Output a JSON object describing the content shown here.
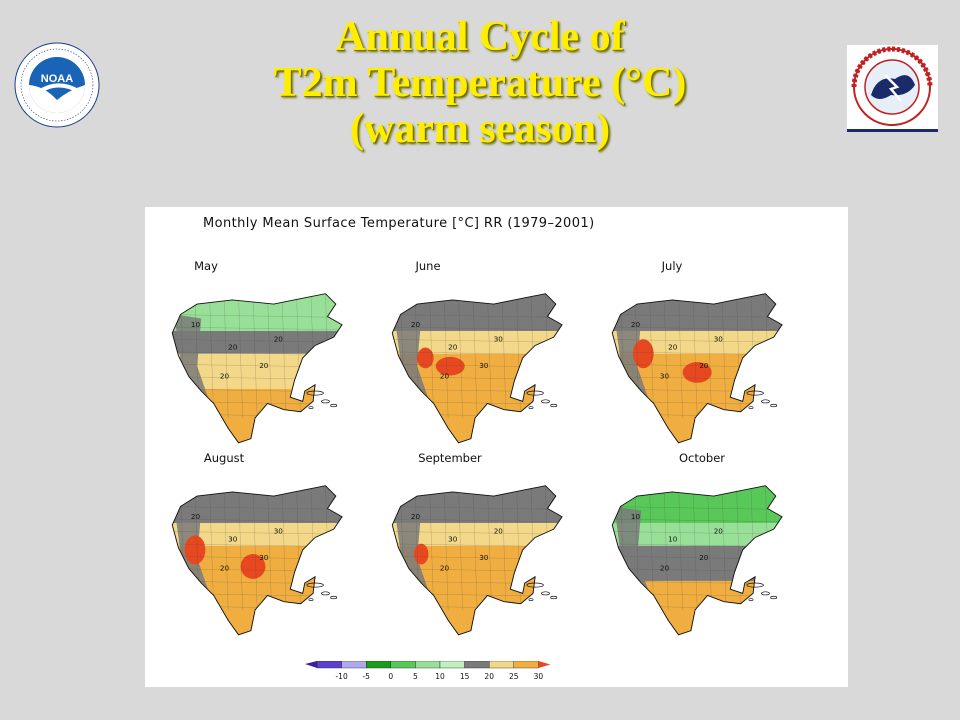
{
  "slide": {
    "title_lines": [
      "Annual Cycle of",
      "T2m Temperature (°C)",
      "(warm season)"
    ]
  },
  "logos": {
    "left": "noaa-logo",
    "right": "national-weather-service-logo"
  },
  "figure": {
    "title": "Monthly Mean Surface Temperature [°C] RR (1979–2001)",
    "panels": [
      {
        "month": "May",
        "contour_labels": [
          "10",
          "20",
          "20",
          "20",
          "20"
        ]
      },
      {
        "month": "June",
        "contour_labels": [
          "20",
          "20",
          "30",
          "20",
          "30"
        ]
      },
      {
        "month": "July",
        "contour_labels": [
          "20",
          "20",
          "30",
          "30",
          "20"
        ]
      },
      {
        "month": "August",
        "contour_labels": [
          "20",
          "30",
          "30",
          "20",
          "30"
        ]
      },
      {
        "month": "September",
        "contour_labels": [
          "20",
          "30",
          "20",
          "20",
          "30"
        ]
      },
      {
        "month": "October",
        "contour_labels": [
          "10",
          "10",
          "20",
          "20",
          "20"
        ]
      }
    ],
    "colorbar": {
      "ticks": [
        "-10",
        "-5",
        "0",
        "5",
        "10",
        "15",
        "20",
        "25",
        "30"
      ],
      "colors": [
        "#3a1fa0",
        "#5a3fd0",
        "#b0a8ee",
        "#1a9c1a",
        "#58c858",
        "#98e098",
        "#c0f0c0",
        "#7a7a7a",
        "#f2d888",
        "#f0ae40",
        "#e84820"
      ]
    }
  }
}
